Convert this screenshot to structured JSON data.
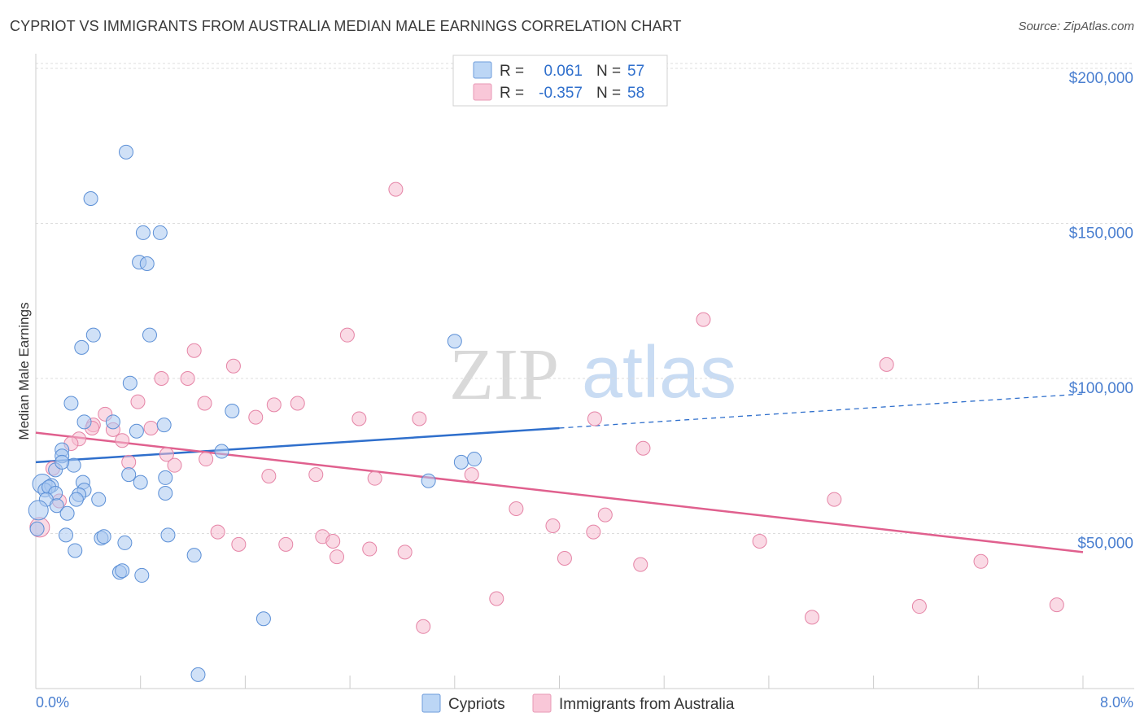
{
  "title": "CYPRIOT VS IMMIGRANTS FROM AUSTRALIA MEDIAN MALE EARNINGS CORRELATION CHART",
  "source": "Source: ZipAtlas.com",
  "watermark": {
    "zip": "ZIP",
    "atlas": "atlas"
  },
  "colors": {
    "blue_fill": "#a9c8f0",
    "blue_stroke": "#5b8fd6",
    "blue_line": "#2f6fcc",
    "pink_fill": "#f6bcd0",
    "pink_stroke": "#e584a6",
    "pink_line": "#e0608e",
    "axis_text": "#4a7fd0",
    "grid": "#dddddd"
  },
  "legend": {
    "rows": [
      {
        "r_label": "R =",
        "r_value": "0.061",
        "n_label": "N =",
        "n_value": "57"
      },
      {
        "r_label": "R =",
        "r_value": "-0.357",
        "n_label": "N =",
        "n_value": "58"
      }
    ]
  },
  "chart_data": {
    "type": "scatter",
    "title": "CYPRIOT VS IMMIGRANTS FROM AUSTRALIA MEDIAN MALE EARNINGS CORRELATION CHART",
    "xlabel": "",
    "ylabel": "Median Male Earnings",
    "xlim": [
      0,
      8
    ],
    "ylim": [
      0,
      210000
    ],
    "x_tick_labels": [
      "0.0%",
      "8.0%"
    ],
    "y_ticks": [
      50000,
      100000,
      150000,
      200000
    ],
    "y_tick_labels": [
      "$50,000",
      "$100,000",
      "$150,000",
      "$200,000"
    ],
    "grid": true,
    "series": [
      {
        "name": "Cypriots",
        "color": "blue",
        "trend": {
          "x0": 0,
          "y0": 73000,
          "x1": 4,
          "y1": 84000,
          "dashed_to": 8,
          "dashed_y": 95000
        },
        "points": [
          [
            0.69,
            173000
          ],
          [
            0.42,
            158000
          ],
          [
            0.82,
            147000
          ],
          [
            0.95,
            147000
          ],
          [
            0.79,
            137500
          ],
          [
            0.85,
            137000
          ],
          [
            0.35,
            110000
          ],
          [
            0.44,
            114000
          ],
          [
            0.87,
            114000
          ],
          [
            3.2,
            112000
          ],
          [
            0.72,
            98500
          ],
          [
            0.27,
            92000
          ],
          [
            1.5,
            89500
          ],
          [
            0.59,
            86000
          ],
          [
            0.98,
            85000
          ],
          [
            0.77,
            83000
          ],
          [
            0.37,
            86000
          ],
          [
            0.2,
            77000
          ],
          [
            0.2,
            75000
          ],
          [
            1.42,
            76500
          ],
          [
            0.15,
            70500
          ],
          [
            0.29,
            72000
          ],
          [
            0.2,
            73000
          ],
          [
            3.25,
            73000
          ],
          [
            3.35,
            74000
          ],
          [
            0.71,
            69000
          ],
          [
            0.8,
            66500
          ],
          [
            0.99,
            68000
          ],
          [
            3.0,
            67000
          ],
          [
            0.05,
            66000
          ],
          [
            0.12,
            65500
          ],
          [
            0.36,
            66500
          ],
          [
            0.07,
            64000
          ],
          [
            0.1,
            65000
          ],
          [
            0.37,
            64000
          ],
          [
            0.15,
            63000
          ],
          [
            0.33,
            62500
          ],
          [
            0.31,
            61000
          ],
          [
            0.48,
            61000
          ],
          [
            0.08,
            61000
          ],
          [
            0.99,
            63000
          ],
          [
            0.16,
            59000
          ],
          [
            0.24,
            56500
          ],
          [
            0.02,
            57500
          ],
          [
            0.01,
            51500
          ],
          [
            0.23,
            49500
          ],
          [
            0.5,
            48500
          ],
          [
            0.52,
            49000
          ],
          [
            0.68,
            47000
          ],
          [
            1.01,
            49500
          ],
          [
            0.3,
            44500
          ],
          [
            1.21,
            43000
          ],
          [
            0.64,
            37500
          ],
          [
            0.66,
            38000
          ],
          [
            0.81,
            36500
          ],
          [
            1.74,
            22500
          ],
          [
            1.24,
            4500
          ]
        ]
      },
      {
        "name": "Immigrants from Australia",
        "color": "pink",
        "trend": {
          "x0": 0,
          "y0": 82500,
          "x1": 8,
          "y1": 44000
        },
        "points": [
          [
            2.75,
            161000
          ],
          [
            5.1,
            119000
          ],
          [
            2.38,
            114000
          ],
          [
            1.21,
            109000
          ],
          [
            6.5,
            104500
          ],
          [
            1.51,
            104000
          ],
          [
            0.96,
            100000
          ],
          [
            1.16,
            100000
          ],
          [
            0.78,
            92500
          ],
          [
            1.29,
            92000
          ],
          [
            1.82,
            91500
          ],
          [
            2.0,
            92000
          ],
          [
            0.53,
            88500
          ],
          [
            1.68,
            87500
          ],
          [
            2.47,
            87000
          ],
          [
            2.93,
            87000
          ],
          [
            4.27,
            87000
          ],
          [
            0.44,
            85000
          ],
          [
            0.88,
            84000
          ],
          [
            0.59,
            83500
          ],
          [
            0.33,
            80500
          ],
          [
            0.66,
            80000
          ],
          [
            0.43,
            84000
          ],
          [
            0.27,
            79000
          ],
          [
            1.0,
            75500
          ],
          [
            4.64,
            77500
          ],
          [
            1.3,
            74000
          ],
          [
            0.71,
            73000
          ],
          [
            1.06,
            72000
          ],
          [
            0.13,
            71000
          ],
          [
            1.78,
            68500
          ],
          [
            2.14,
            69000
          ],
          [
            2.59,
            67800
          ],
          [
            3.33,
            69000
          ],
          [
            0.18,
            60500
          ],
          [
            6.1,
            61000
          ],
          [
            3.67,
            58000
          ],
          [
            4.35,
            56000
          ],
          [
            3.95,
            52500
          ],
          [
            1.39,
            50500
          ],
          [
            2.19,
            49000
          ],
          [
            4.26,
            50500
          ],
          [
            1.55,
            46500
          ],
          [
            1.91,
            46500
          ],
          [
            2.27,
            47500
          ],
          [
            5.53,
            47500
          ],
          [
            2.55,
            45000
          ],
          [
            2.82,
            44000
          ],
          [
            4.04,
            42000
          ],
          [
            2.3,
            42500
          ],
          [
            4.62,
            40000
          ],
          [
            7.22,
            41000
          ],
          [
            3.52,
            29000
          ],
          [
            2.96,
            20000
          ],
          [
            5.93,
            23000
          ],
          [
            6.75,
            26500
          ],
          [
            7.8,
            27000
          ],
          [
            0.03,
            52000
          ]
        ]
      }
    ]
  },
  "bottom_legend": [
    {
      "label": "Cypriots"
    },
    {
      "label": "Immigrants from Australia"
    }
  ]
}
